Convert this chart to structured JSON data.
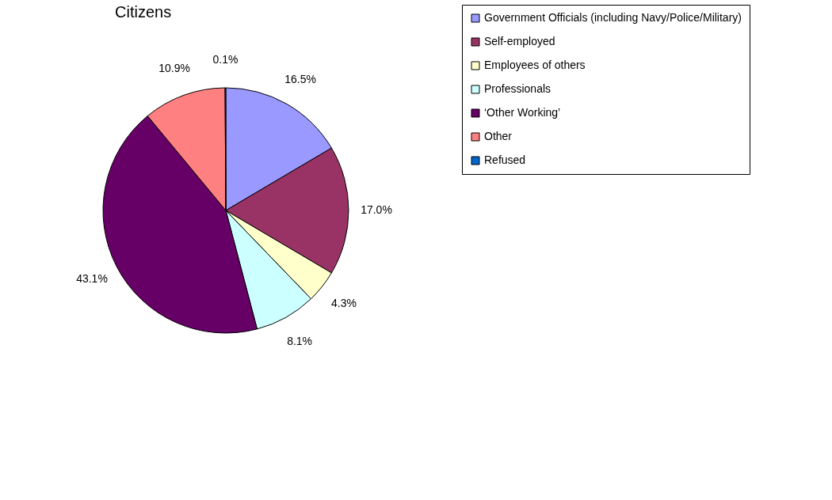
{
  "chart_data": {
    "type": "pie",
    "title": "Citizens",
    "categories": [
      "Government Officials (including Navy/Police/Military)",
      "Self-employed",
      "Employees of others",
      "Professionals",
      "‘Other Working’",
      "Other",
      "Refused"
    ],
    "values": [
      16.5,
      17.0,
      4.3,
      8.1,
      43.1,
      10.9,
      0.1
    ],
    "value_labels": [
      "16.5%",
      "17.0%",
      "4.3%",
      "8.1%",
      "43.1%",
      "10.9%",
      "0.1%"
    ],
    "colors": [
      "#9999ff",
      "#993366",
      "#ffffcc",
      "#ccffff",
      "#660066",
      "#ff8080",
      "#0066cc"
    ],
    "legend": "right"
  }
}
